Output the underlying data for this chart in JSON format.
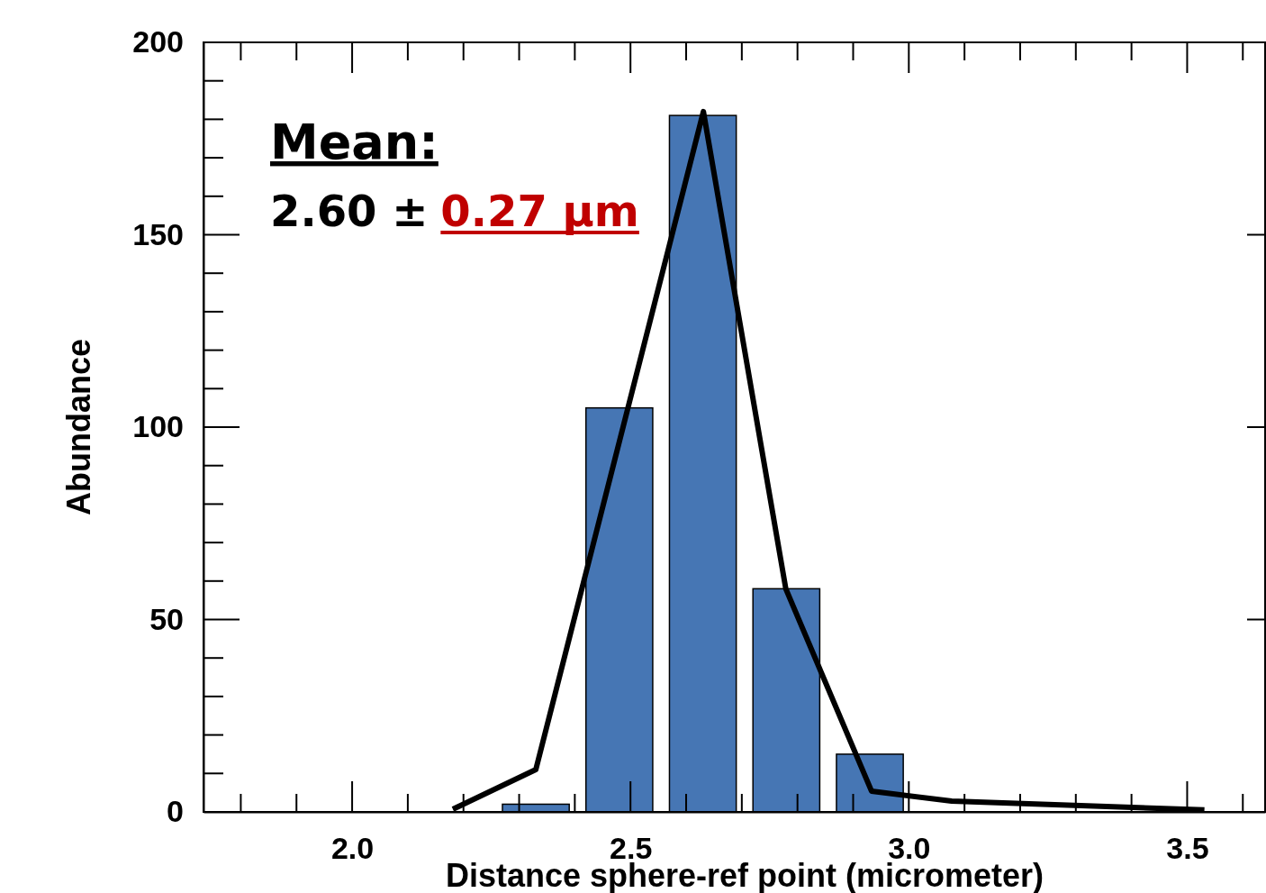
{
  "chart_data": {
    "type": "bar",
    "xlabel": "Distance sphere-ref point (micrometer)",
    "ylabel": "Abundance",
    "annotations": [
      "Mean:",
      "2.60 ±",
      "0.27 µm"
    ],
    "xlim": [
      1.733,
      3.64
    ],
    "ylim": [
      0,
      200
    ],
    "xticks": [
      {
        "value": 2.0,
        "label": "2.0"
      },
      {
        "value": 2.5,
        "label": "2.5"
      },
      {
        "value": 3.0,
        "label": "3.0"
      },
      {
        "value": 3.5,
        "label": "3.5"
      }
    ],
    "yticks": [
      0,
      50,
      100,
      150,
      200
    ],
    "grid": false,
    "series": [
      {
        "color": "#4676b4",
        "x": [
          2.33,
          2.48,
          2.63,
          2.78,
          2.93
        ],
        "values": [
          2,
          105,
          181,
          58,
          15
        ]
      },
      {
        "type": "line",
        "color": "#000000",
        "x": [
          2.181,
          2.33,
          2.631,
          2.779,
          2.933,
          3.077,
          3.531
        ],
        "values": [
          0.7,
          11,
          182,
          58,
          5.4,
          2.8,
          0.5
        ]
      }
    ]
  }
}
